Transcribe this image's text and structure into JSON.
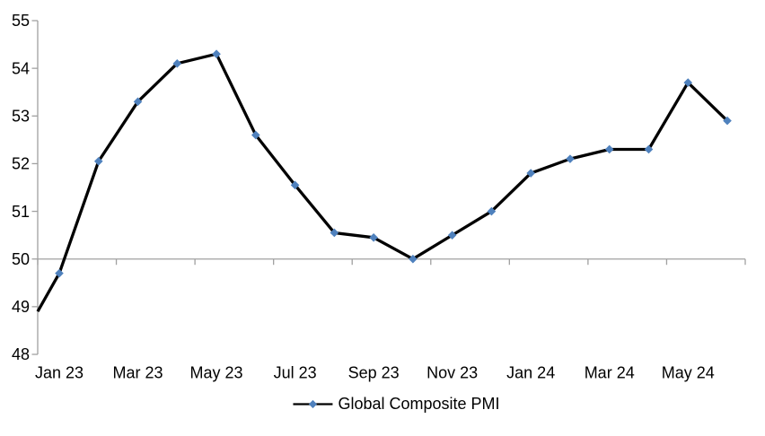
{
  "chart_data": {
    "type": "line",
    "title": "",
    "categories": [
      "Jan 23",
      "Feb 23",
      "Mar 23",
      "Apr 23",
      "May 23",
      "Jun 23",
      "Jul 23",
      "Aug 23",
      "Sep 23",
      "Oct 23",
      "Nov 23",
      "Dec 23",
      "Jan 24",
      "Feb 24",
      "Mar 24",
      "Apr 24",
      "May 24",
      "Jun 24"
    ],
    "series": [
      {
        "name": "Global Composite PMI",
        "values": [
          49.7,
          52.05,
          53.3,
          54.1,
          54.3,
          52.6,
          51.55,
          50.55,
          50.45,
          50.0,
          50.5,
          51.0,
          51.8,
          52.1,
          52.3,
          52.3,
          53.7,
          52.9
        ],
        "line_color": "#000000",
        "marker": "diamond",
        "marker_color": "#4f81bd"
      }
    ],
    "clipped_lead_in_value_at_left_axis": 48.9,
    "x_tick_labels": [
      "Jan 23",
      "Mar 23",
      "May 23",
      "Jul 23",
      "Sep 23",
      "Nov 23",
      "Jan 24",
      "Mar 24",
      "May 24"
    ],
    "y_ticks": [
      48,
      49,
      50,
      51,
      52,
      53,
      54,
      55
    ],
    "ylim": [
      48,
      55
    ],
    "category_axis_crosses_at": 50,
    "grid": "off",
    "legend_position": "bottom-center",
    "axis_color": "#a0a0a0",
    "text_color": "#000000",
    "background_color": "#ffffff"
  }
}
